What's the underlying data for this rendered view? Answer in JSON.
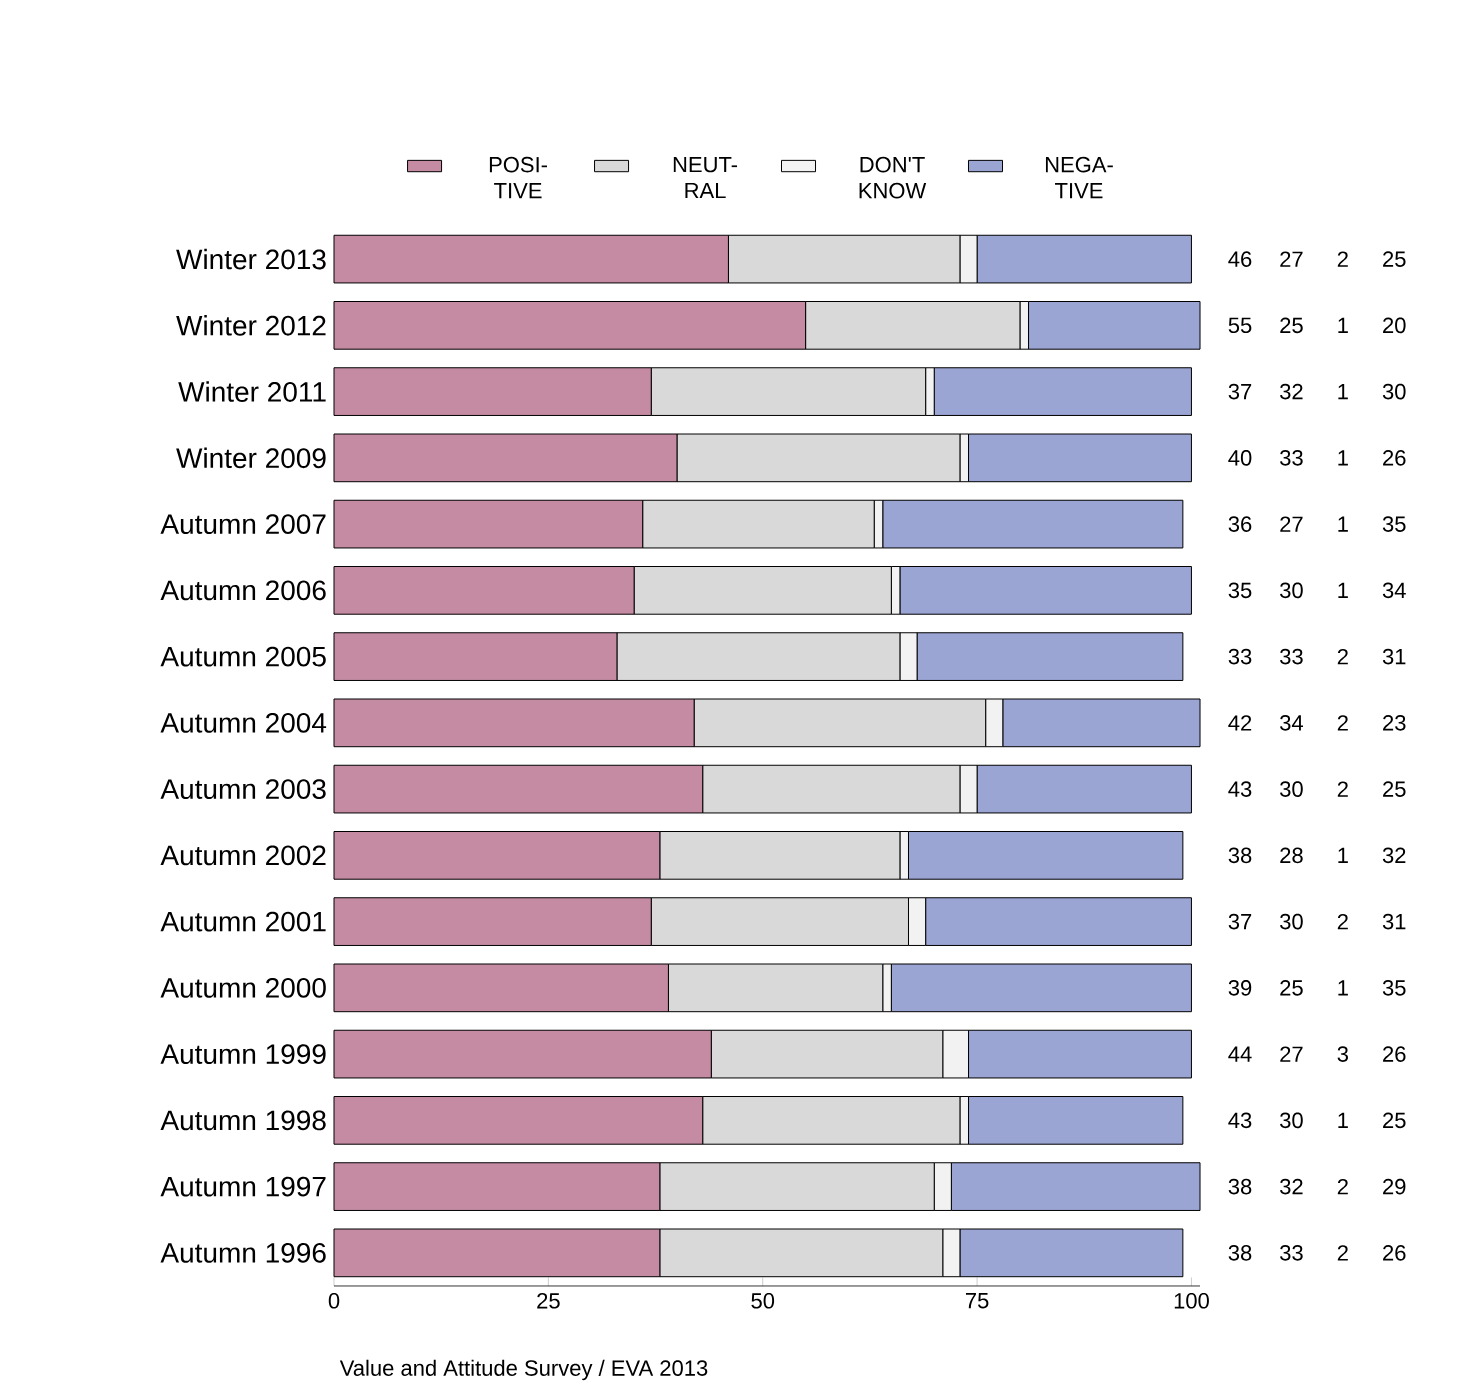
{
  "chart_data": {
    "type": "bar",
    "orientation": "horizontal",
    "stacked": true,
    "categories": [
      "Winter 2013",
      "Winter 2012",
      "Winter 2011",
      "Winter 2009",
      "Autumn 2007",
      "Autumn 2006",
      "Autumn 2005",
      "Autumn 2004",
      "Autumn 2003",
      "Autumn 2002",
      "Autumn 2001",
      "Autumn 2000",
      "Autumn 1999",
      "Autumn 1998",
      "Autumn 1997",
      "Autumn 1996"
    ],
    "series": [
      {
        "name": "POSI- TIVE",
        "color": "#c48ba3",
        "values": [
          46,
          55,
          37,
          40,
          36,
          35,
          33,
          42,
          43,
          38,
          37,
          39,
          44,
          43,
          38,
          38
        ]
      },
      {
        "name": "NEUT- RAL",
        "color": "#d9d9d9",
        "values": [
          27,
          25,
          32,
          33,
          27,
          30,
          33,
          34,
          30,
          28,
          30,
          25,
          27,
          30,
          32,
          33
        ]
      },
      {
        "name": "DON'T KNOW",
        "color": "#f2f2f2",
        "values": [
          2,
          1,
          1,
          1,
          1,
          1,
          2,
          2,
          2,
          1,
          2,
          1,
          3,
          1,
          2,
          2
        ]
      },
      {
        "name": "NEGA- TIVE",
        "color": "#9ba5d4",
        "values": [
          25,
          20,
          30,
          26,
          35,
          34,
          31,
          23,
          25,
          32,
          31,
          35,
          26,
          25,
          29,
          26
        ]
      }
    ],
    "xlim": [
      0,
      101
    ],
    "xticks": [
      0,
      25,
      50,
      75,
      100
    ],
    "data_labels": true,
    "legend": "top",
    "grid": false,
    "annotations": [
      "Value and Attitude Survey / EVA 2013"
    ]
  }
}
